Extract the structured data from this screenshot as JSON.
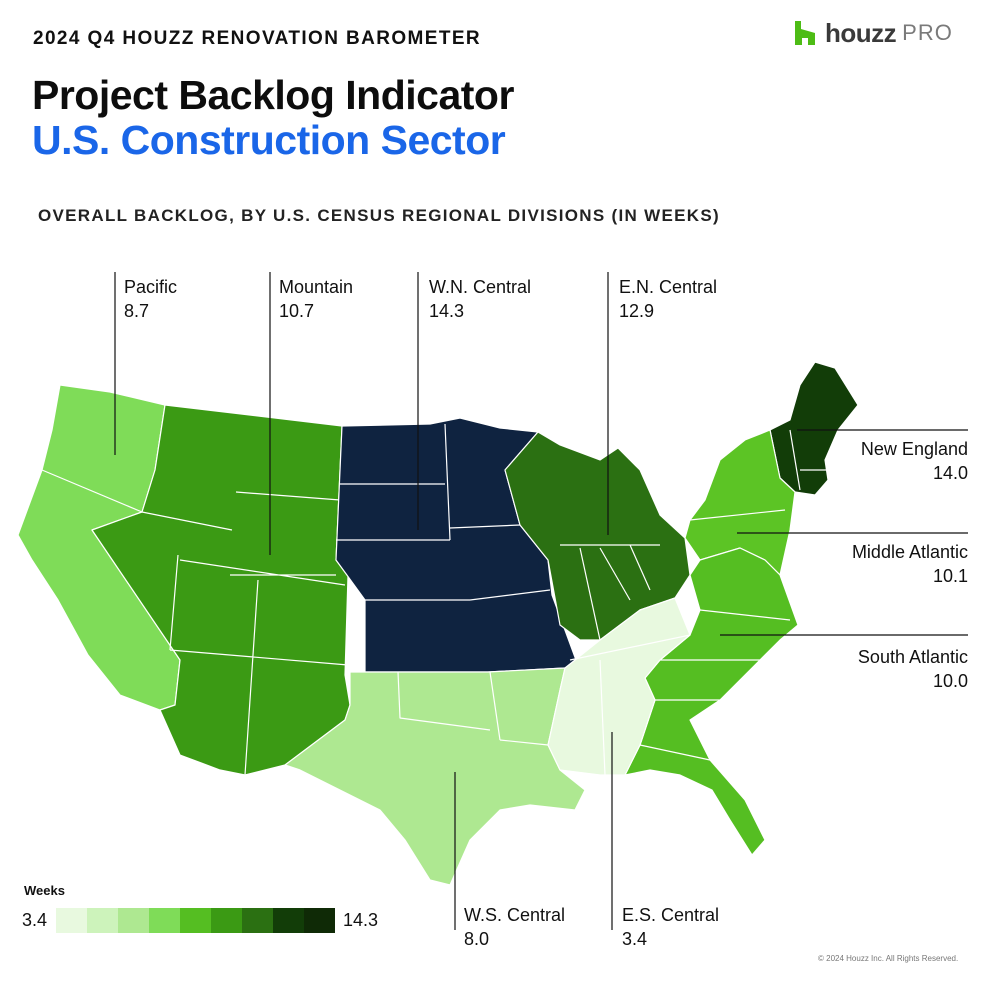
{
  "header": {
    "eyebrow": "2024 Q4 HOUZZ RENOVATION BAROMETER",
    "title": "Project Backlog Indicator",
    "subtitle": "U.S. Construction Sector",
    "section_title": "OVERALL BACKLOG, BY U.S. CENSUS REGIONAL DIVISIONS  (IN WEEKS)"
  },
  "logo": {
    "brand": "houzz",
    "suffix": "PRO",
    "icon": "houzz-logo-icon",
    "color": "#4dbc15"
  },
  "regions": [
    {
      "id": "pacific",
      "name": "Pacific",
      "value": "8.7",
      "color": "#7fdc58"
    },
    {
      "id": "mountain",
      "name": "Mountain",
      "value": "10.7",
      "color": "#3b9a14"
    },
    {
      "id": "wn-central",
      "name": "W.N. Central",
      "value": "14.3",
      "color": "#0f2340"
    },
    {
      "id": "en-central",
      "name": "E.N. Central",
      "value": "12.9",
      "color": "#2b7012"
    },
    {
      "id": "new-england",
      "name": "New England",
      "value": "14.0",
      "color": "#123d08"
    },
    {
      "id": "middle-atlantic",
      "name": "Middle Atlantic",
      "value": "10.1",
      "color": "#5cc425"
    },
    {
      "id": "south-atlantic",
      "name": "South Atlantic",
      "value": "10.0",
      "color": "#55be22"
    },
    {
      "id": "ws-central",
      "name": "W.S. Central",
      "value": "8.0",
      "color": "#aee891"
    },
    {
      "id": "es-central",
      "name": "E.S. Central",
      "value": "3.4",
      "color": "#e8f9df"
    }
  ],
  "legend": {
    "title": "Weeks",
    "min": "3.4",
    "max": "14.3",
    "swatches": [
      "#e8f9df",
      "#cdf3bb",
      "#aee891",
      "#7fdc58",
      "#55be22",
      "#3b9a14",
      "#2b7012",
      "#123d08",
      "#0f2a06"
    ]
  },
  "footer": {
    "copyright": "© 2024 Houzz Inc. All Rights Reserved."
  }
}
